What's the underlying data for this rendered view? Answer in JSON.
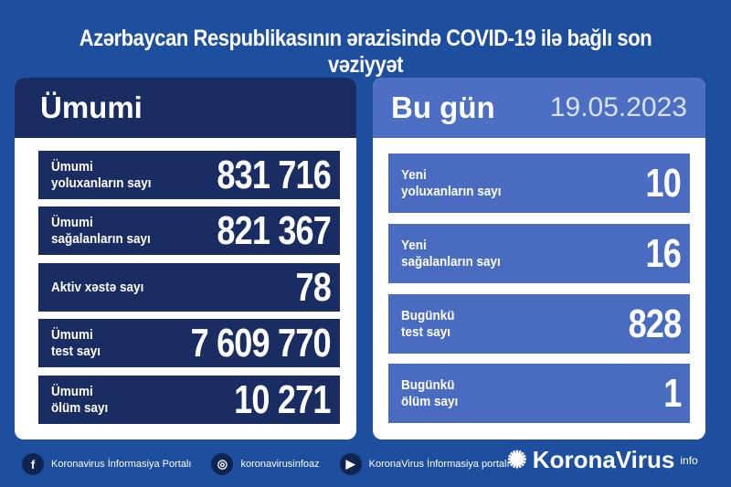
{
  "title": "Azərbaycan Respublikasının ərazisində COVID-19 ilə bağlı son vəziyyət",
  "left": {
    "heading": "Ümumi",
    "rows": [
      {
        "label1": "Ümumi",
        "label2": "yoluxanların sayı",
        "value": "831 716"
      },
      {
        "label1": "Ümumi",
        "label2": "sağalanların sayı",
        "value": "821 367"
      },
      {
        "label1": "Aktiv xəstə sayı",
        "label2": "",
        "value": "78"
      },
      {
        "label1": "Ümumi",
        "label2": "test sayı",
        "value": "7 609 770"
      },
      {
        "label1": "Ümumi",
        "label2": "ölüm sayı",
        "value": "10 271"
      }
    ]
  },
  "right": {
    "heading": "Bu gün",
    "date": "19.05.2023",
    "rows": [
      {
        "label1": "Yeni",
        "label2": "yoluxanların sayı",
        "value": "10"
      },
      {
        "label1": "Yeni",
        "label2": "sağalanların sayı",
        "value": "16"
      },
      {
        "label1": "Bugünkü",
        "label2": "test sayı",
        "value": "828"
      },
      {
        "label1": "Bugünkü",
        "label2": "ölüm sayı",
        "value": "1"
      }
    ]
  },
  "footer": {
    "facebook": "Koronavirus İnformasiya Portalı",
    "instagram": "koronavirusinfoaz",
    "youtube": "KoronaVirus İnformasiya portalı",
    "brand": "KoronaVirus",
    "brand_sup": "info"
  }
}
